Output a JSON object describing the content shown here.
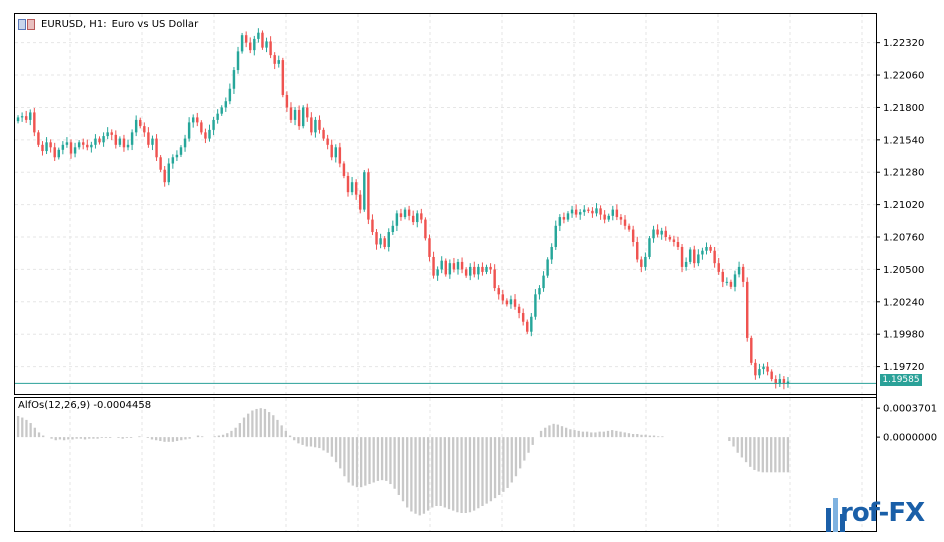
{
  "colors": {
    "bull": "#26a69a",
    "bear": "#ef5350",
    "grid": "#e6e6e6",
    "histogram": "#c8c8c8",
    "price_line": "#2aa198",
    "axis": "#000000"
  },
  "main_title": {
    "symbol": "EURUSD, H1:",
    "description": "Euro vs US Dollar",
    "icon": "symbol-flags-icon"
  },
  "oscillator": {
    "title": "AlfOs(12,26,9) -0.0004458",
    "tick_labels": [
      "0.0003701",
      "0.0000000"
    ]
  },
  "current_price": "1.19585",
  "logo": {
    "text": "rof-FX",
    "icon": "prof-fx-logo-icon"
  },
  "chart_data": [
    {
      "type": "candlestick",
      "ylim": [
        1.195,
        1.2255
      ],
      "ticks": [
        1.2232,
        1.2206,
        1.218,
        1.2154,
        1.2128,
        1.2102,
        1.2076,
        1.205,
        1.2024,
        1.1998,
        1.1972
      ],
      "tick_labels": [
        "1.22320",
        "1.22060",
        "1.21800",
        "1.21540",
        "1.21280",
        "1.21020",
        "1.20760",
        "1.20500",
        "1.20240",
        "1.19980",
        "1.19720"
      ],
      "current_price": 1.19585,
      "grid": true,
      "close": [
        1.2172,
        1.2173,
        1.217,
        1.2176,
        1.216,
        1.215,
        1.2145,
        1.2152,
        1.2148,
        1.214,
        1.2146,
        1.215,
        1.2152,
        1.2143,
        1.2148,
        1.2152,
        1.215,
        1.2148,
        1.215,
        1.2155,
        1.2152,
        1.2157,
        1.216,
        1.2158,
        1.215,
        1.2155,
        1.2148,
        1.215,
        1.216,
        1.217,
        1.2165,
        1.216,
        1.215,
        1.2155,
        1.214,
        1.213,
        1.212,
        1.2135,
        1.214,
        1.2142,
        1.2148,
        1.2155,
        1.2168,
        1.2172,
        1.2168,
        1.216,
        1.2155,
        1.2162,
        1.217,
        1.2175,
        1.218,
        1.2185,
        1.2195,
        1.221,
        1.2225,
        1.2238,
        1.2232,
        1.2226,
        1.2235,
        1.224,
        1.2228,
        1.2233,
        1.2222,
        1.2215,
        1.2218,
        1.219,
        1.218,
        1.217,
        1.2178,
        1.2165,
        1.218,
        1.2172,
        1.216,
        1.217,
        1.2162,
        1.2155,
        1.215,
        1.214,
        1.2148,
        1.2135,
        1.2125,
        1.2112,
        1.212,
        1.211,
        1.2098,
        1.2128,
        1.209,
        1.208,
        1.207,
        1.2075,
        1.2068,
        1.208,
        1.2085,
        1.2095,
        1.2092,
        1.2098,
        1.2093,
        1.2088,
        1.2095,
        1.209,
        1.2075,
        1.206,
        1.2045,
        1.205,
        1.2057,
        1.2046,
        1.2055,
        1.205,
        1.2056,
        1.205,
        1.2045,
        1.2052,
        1.2046,
        1.2052,
        1.2048,
        1.2052,
        1.205,
        1.2035,
        1.203,
        1.2025,
        1.2022,
        1.2026,
        1.202,
        1.2015,
        1.2008,
        1.2,
        1.2012,
        1.203,
        1.2035,
        1.2045,
        1.2058,
        1.2068,
        1.2085,
        1.2092,
        1.209,
        1.2095,
        1.2098,
        1.2094,
        1.2096,
        1.2098,
        1.2097,
        1.2095,
        1.2099,
        1.2094,
        1.209,
        1.2093,
        1.2098,
        1.2092,
        1.209,
        1.2085,
        1.2082,
        1.2072,
        1.2058,
        1.2052,
        1.206,
        1.2075,
        1.2082,
        1.2078,
        1.2081,
        1.2076,
        1.2074,
        1.2072,
        1.2068,
        1.2052,
        1.2056,
        1.2066,
        1.2055,
        1.2062,
        1.2065,
        1.2068,
        1.2065,
        1.2055,
        1.2048,
        1.204,
        1.204,
        1.2036,
        1.2046,
        1.2052,
        1.204,
        1.1995,
        1.1975,
        1.1965,
        1.197,
        1.1972,
        1.1968,
        1.1962,
        1.1958,
        1.1962,
        1.1958,
        1.196
      ]
    },
    {
      "type": "bar",
      "ylim": [
        -0.0012,
        0.0005
      ],
      "ticks": [
        0.0003701,
        0.0
      ],
      "tick_labels": [
        "0.0003701",
        "0.0000000"
      ],
      "last_value": -0.0004458,
      "values": [
        0.00027,
        0.00025,
        0.00022,
        0.00018,
        0.00012,
        6e-05,
        2e-05,
        0.0,
        -2e-05,
        -4e-05,
        -3e-05,
        -4e-05,
        -3e-05,
        -3e-05,
        -2e-05,
        -2e-05,
        -3e-05,
        -2e-05,
        -2e-05,
        -2e-05,
        -1e-05,
        -1e-05,
        -1e-05,
        0.0,
        -1e-05,
        -2e-05,
        -1e-05,
        -1e-05,
        0.0,
        1e-05,
        0.0,
        -1e-05,
        -3e-05,
        -4e-05,
        -5e-05,
        -6e-05,
        -6e-05,
        -6e-05,
        -5e-05,
        -4e-05,
        -3e-05,
        -2e-05,
        0.0,
        2e-05,
        1e-05,
        0.0,
        0.0,
        1e-05,
        2e-05,
        3e-05,
        5e-05,
        8e-05,
        0.00012,
        0.00018,
        0.00025,
        0.0003,
        0.00034,
        0.00036,
        0.00037,
        0.00036,
        0.00032,
        0.00028,
        0.00022,
        0.00015,
        8e-05,
        2e-05,
        -4e-05,
        -8e-05,
        -0.0001,
        -0.00012,
        -0.00012,
        -0.00013,
        -0.00014,
        -0.00017,
        -0.0002,
        -0.00025,
        -0.00032,
        -0.0004,
        -0.0005,
        -0.00058,
        -0.00062,
        -0.00064,
        -0.00064,
        -0.00062,
        -0.0006,
        -0.00058,
        -0.00056,
        -0.00055,
        -0.00056,
        -0.0006,
        -0.00066,
        -0.00074,
        -0.00082,
        -0.0009,
        -0.00095,
        -0.00098,
        -0.001,
        -0.00098,
        -0.00094,
        -0.0009,
        -0.00088,
        -0.00088,
        -0.0009,
        -0.00092,
        -0.00094,
        -0.00096,
        -0.00097,
        -0.00097,
        -0.00096,
        -0.00094,
        -0.00091,
        -0.00088,
        -0.00085,
        -0.00082,
        -0.00078,
        -0.00074,
        -0.0007,
        -0.00065,
        -0.00058,
        -0.0005,
        -0.0004,
        -0.0003,
        -0.0002,
        -0.0001,
        0.0,
        8e-05,
        0.00012,
        0.00015,
        0.00017,
        0.00016,
        0.00014,
        0.00012,
        0.0001,
        9e-05,
        8e-05,
        7e-05,
        7e-05,
        6e-05,
        6e-05,
        7e-05,
        7e-05,
        8e-05,
        9e-05,
        8e-05,
        7e-05,
        6e-05,
        5e-05,
        4e-05,
        4e-05,
        3e-05,
        3e-05,
        2e-05,
        2e-05,
        1e-05,
        1e-05,
        0.0,
        0.0,
        0.0,
        0.0,
        0.0,
        0.0,
        0.0,
        0.0,
        0.0,
        0.0,
        0.0,
        0.0,
        0.0,
        0.0,
        0.0,
        -5e-05,
        -0.00012,
        -0.0002,
        -0.00026,
        -0.00032,
        -0.00038,
        -0.00042,
        -0.00044,
        -0.00045,
        -0.00045,
        -0.00045,
        -0.00045,
        -0.00045,
        -0.00045,
        -0.00045
      ]
    }
  ]
}
